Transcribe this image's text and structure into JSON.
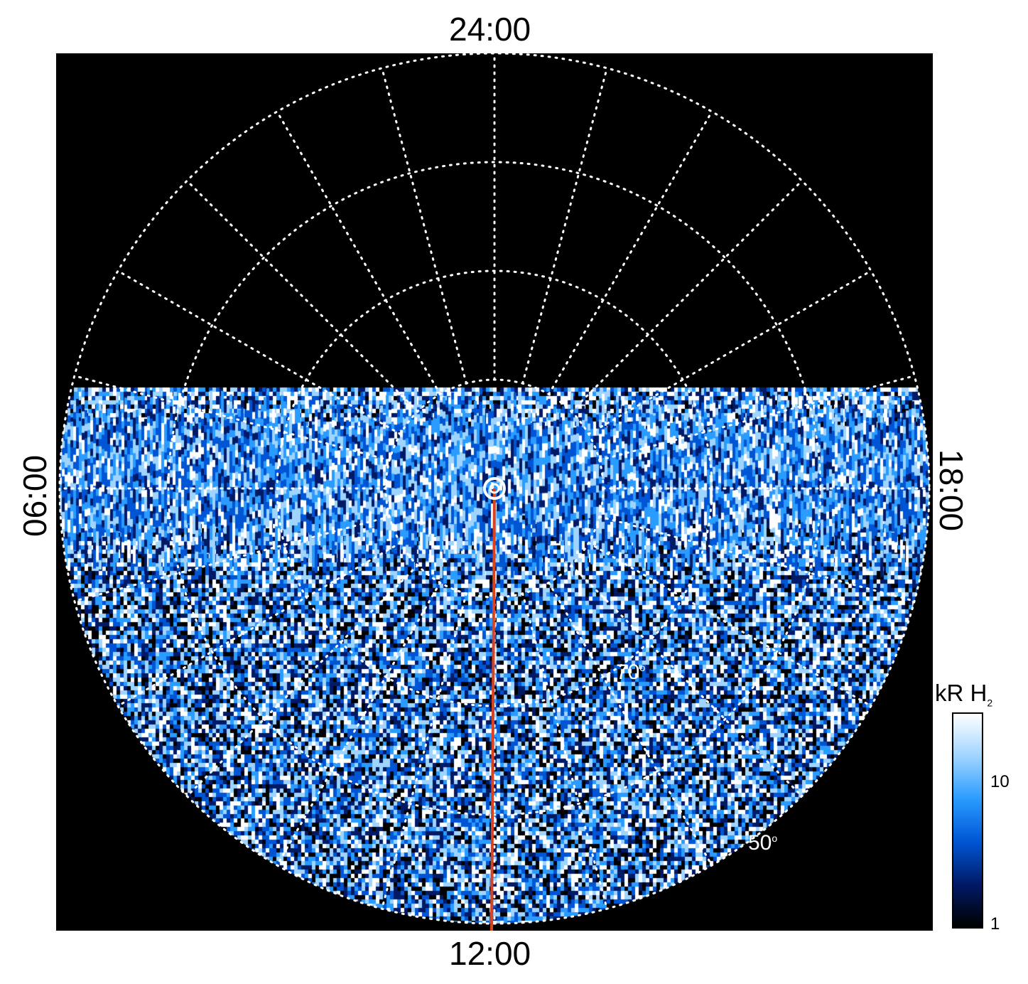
{
  "local_time_labels": {
    "top": "24:00",
    "bottom": "12:00",
    "left": "06:00",
    "right": "18:00"
  },
  "latitude_labels": [
    {
      "value": "70",
      "unit": "o"
    },
    {
      "value": "50",
      "unit": "o"
    }
  ],
  "colorbar": {
    "unit": "kR",
    "species": "H",
    "species_subscript": "2",
    "ticks": [
      "10",
      "1"
    ],
    "scale": "log",
    "colors": [
      "#000000",
      "#001a66",
      "#0055d4",
      "#2a9bff",
      "#9fd4ff",
      "#ffffff"
    ]
  },
  "projection": {
    "pole_marker": "pole-icon",
    "meridian_color": "#d9431f",
    "grid_color": "#ffffff",
    "background": "#000000"
  }
}
